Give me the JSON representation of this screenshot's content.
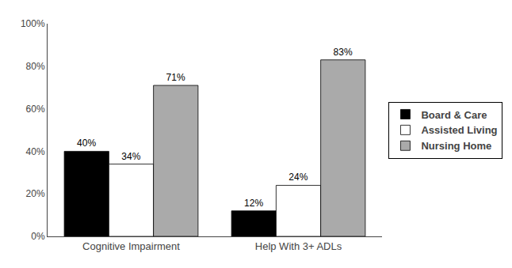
{
  "chart_data": {
    "type": "bar",
    "categories": [
      "Cognitive Impairment",
      "Help With 3+ ADLs"
    ],
    "series": [
      {
        "name": "Board & Care",
        "color": "#000000",
        "values": [
          40,
          12
        ],
        "value_labels": [
          "40%",
          "12%"
        ]
      },
      {
        "name": "Assisted Living",
        "color": "#ffffff",
        "values": [
          34,
          24
        ],
        "value_labels": [
          "34%",
          "24%"
        ]
      },
      {
        "name": "Nursing Home",
        "color": "#aaaaaa",
        "values": [
          71,
          83
        ],
        "value_labels": [
          "71%",
          "83%"
        ]
      }
    ],
    "ylim": [
      0,
      100
    ],
    "yticks": [
      {
        "value": 0,
        "label": "0%"
      },
      {
        "value": 20,
        "label": "20%"
      },
      {
        "value": 40,
        "label": "40%"
      },
      {
        "value": 60,
        "label": "60%"
      },
      {
        "value": 80,
        "label": "80%"
      },
      {
        "value": 100,
        "label": "100%"
      }
    ],
    "grid": false,
    "legend": "right",
    "data_labels": true
  }
}
